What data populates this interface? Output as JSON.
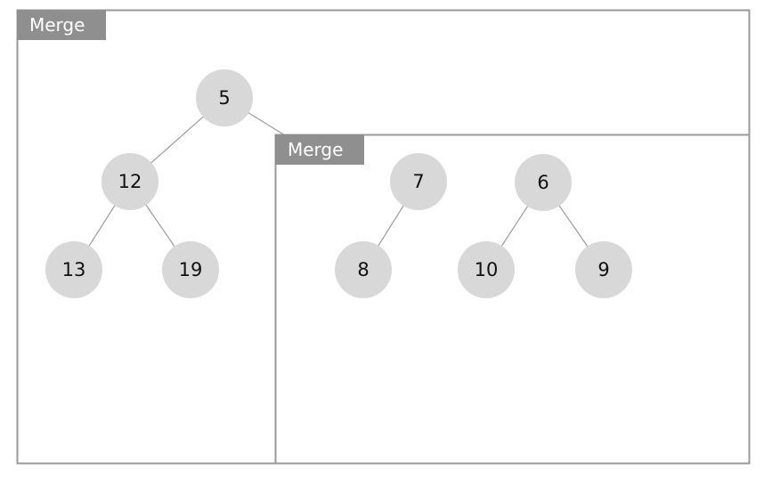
{
  "outer_merge": {
    "label": "Merge",
    "nodes": {
      "root": "5",
      "child": "12",
      "left_leaf": "13",
      "right_leaf": "19"
    }
  },
  "inner_merge": {
    "label": "Merge",
    "nodes": {
      "left_root": "7",
      "left_child": "8",
      "right_root": "6",
      "right_left": "10",
      "right_right": "9"
    }
  },
  "colors": {
    "frame": "#9a9a9a",
    "label_bg": "#8f8f8f",
    "label_text": "#ffffff",
    "node_fill": "#d8d8d8",
    "edge": "#9c9c9c"
  }
}
